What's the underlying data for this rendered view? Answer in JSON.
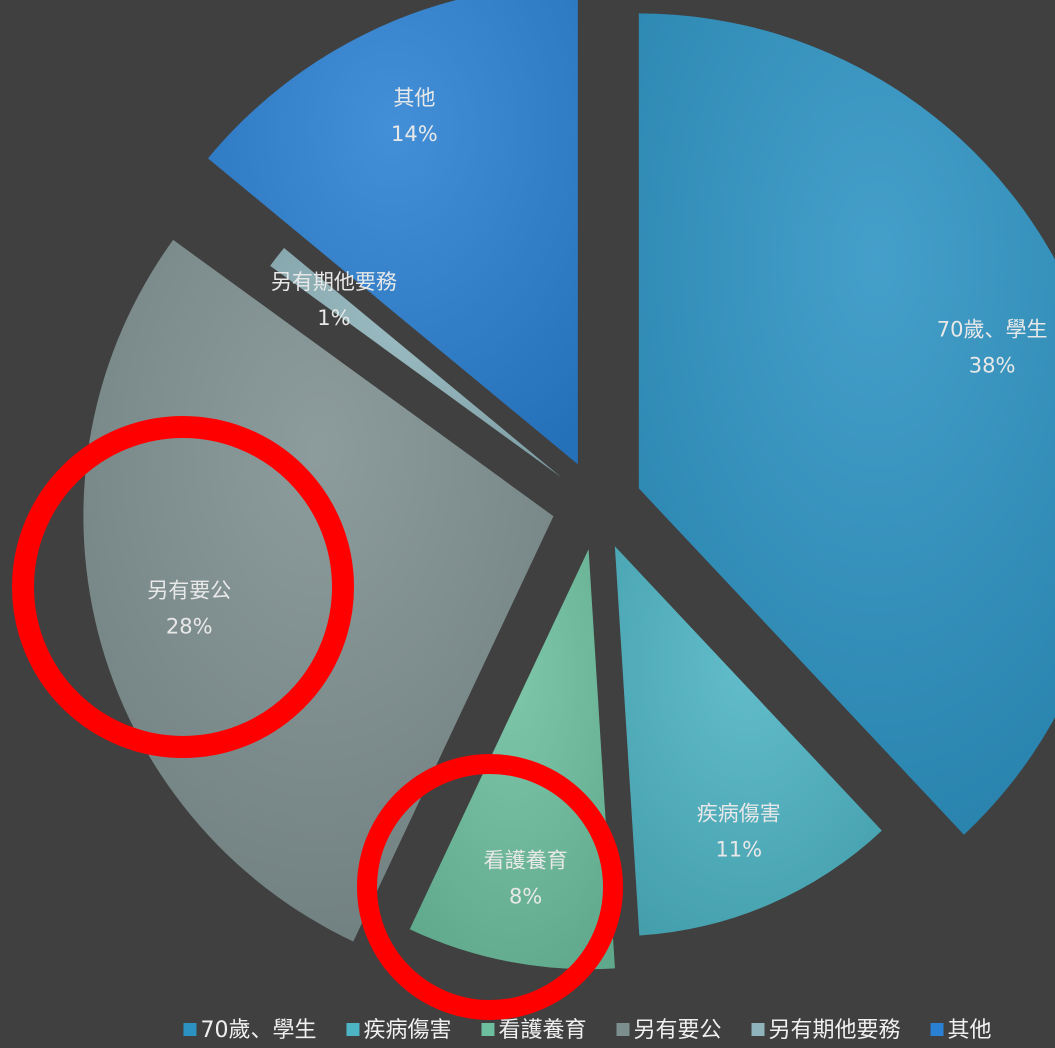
{
  "chart_data": {
    "type": "pie",
    "categories": [
      "70歲、學生",
      "疾病傷害",
      "看護養育",
      "另有要公",
      "另有期他要務",
      "其他"
    ],
    "values": [
      38,
      11,
      8,
      28,
      1,
      14
    ],
    "value_labels": [
      "38%",
      "11%",
      "8%",
      "28%",
      "1%",
      "14%"
    ],
    "colors": [
      "#2b92c2",
      "#4db4c4",
      "#6cbf9f",
      "#7d8e8e",
      "#8fb4bb",
      "#2a80d2"
    ],
    "legend": "bottom"
  }
}
